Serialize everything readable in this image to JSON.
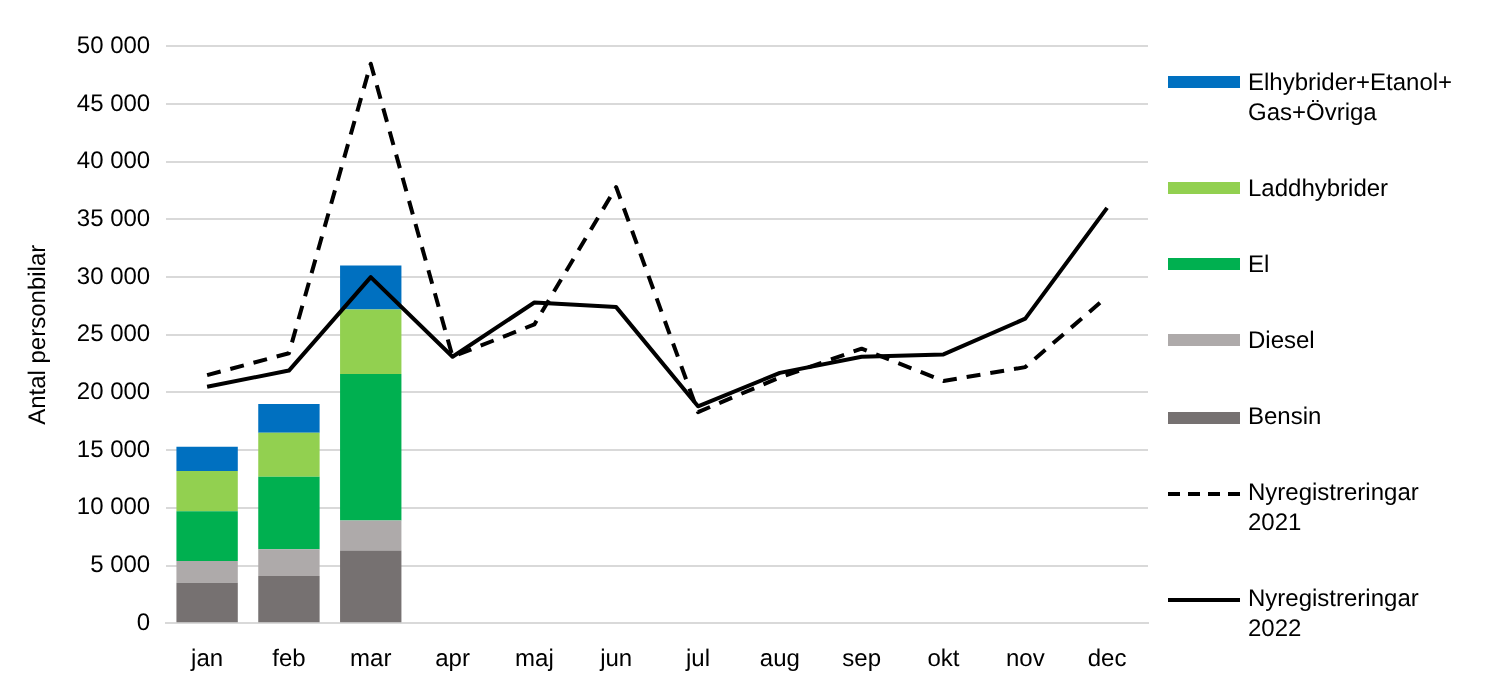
{
  "chart_data": {
    "type": "bar",
    "stacked": true,
    "ylabel": "Antal personbilar",
    "categories": [
      "jan",
      "feb",
      "mar",
      "apr",
      "maj",
      "jun",
      "jul",
      "aug",
      "sep",
      "okt",
      "nov",
      "dec"
    ],
    "series": [
      {
        "name": "Bensin",
        "color": "#767171",
        "values": [
          3500,
          4100,
          6300,
          null,
          null,
          null,
          null,
          null,
          null,
          null,
          null,
          null
        ]
      },
      {
        "name": "Diesel",
        "color": "#aeaaaa",
        "values": [
          1900,
          2300,
          2600,
          null,
          null,
          null,
          null,
          null,
          null,
          null,
          null,
          null
        ]
      },
      {
        "name": "El",
        "color": "#00b050",
        "values": [
          4300,
          6300,
          12700,
          null,
          null,
          null,
          null,
          null,
          null,
          null,
          null,
          null
        ]
      },
      {
        "name": "Laddhybrider",
        "color": "#92d050",
        "values": [
          3500,
          3800,
          5600,
          null,
          null,
          null,
          null,
          null,
          null,
          null,
          null,
          null
        ]
      },
      {
        "name": "Elhybrider+Etanol+Gas+Övriga",
        "color": "#0070c0",
        "values": [
          2100,
          2500,
          3800,
          null,
          null,
          null,
          null,
          null,
          null,
          null,
          null,
          null
        ]
      },
      {
        "name": "Nyregistreringar 2021",
        "type": "line",
        "line_style": "dashed",
        "color": "#000000",
        "values": [
          21500,
          23400,
          48500,
          23100,
          25900,
          37800,
          18300,
          21300,
          23800,
          21000,
          22200,
          28300
        ]
      },
      {
        "name": "Nyregistreringar 2022",
        "type": "line",
        "line_style": "solid",
        "color": "#000000",
        "values": [
          20500,
          21900,
          30000,
          23100,
          27800,
          27400,
          18800,
          21700,
          23100,
          23300,
          26400,
          36000
        ]
      }
    ],
    "ylim": [
      0,
      50000
    ],
    "yticks": [
      {
        "value": 0,
        "label": "0"
      },
      {
        "value": 5000,
        "label": "5 000"
      },
      {
        "value": 10000,
        "label": "10 000"
      },
      {
        "value": 15000,
        "label": "15 000"
      },
      {
        "value": 20000,
        "label": "20 000"
      },
      {
        "value": 25000,
        "label": "25 000"
      },
      {
        "value": 30000,
        "label": "30 000"
      },
      {
        "value": 35000,
        "label": "35 000"
      },
      {
        "value": 40000,
        "label": "40 000"
      },
      {
        "value": 45000,
        "label": "45 000"
      },
      {
        "value": 50000,
        "label": "50 000"
      }
    ],
    "grid": "y",
    "legend": "right",
    "marker": "none"
  }
}
